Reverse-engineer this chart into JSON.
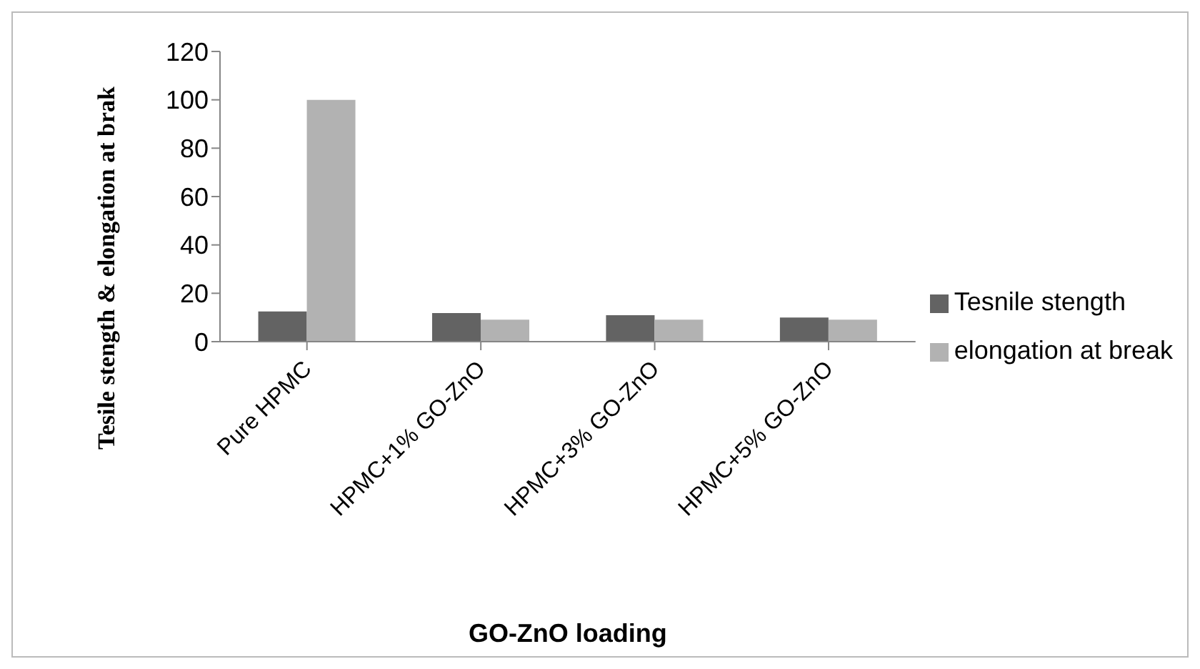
{
  "chart_data": {
    "type": "bar",
    "xlabel": "GO-ZnO loading",
    "ylabel": "Tesile stength & elongation at brak",
    "categories": [
      "Pure HPMC",
      "HPMC+1% GO-ZnO",
      "HPMC+3% GO-ZnO",
      "HPMC+5% GO-ZnO"
    ],
    "series": [
      {
        "name": "Tesnile stength",
        "color": "#636363",
        "values": [
          12.5,
          11.8,
          10.9,
          10
        ]
      },
      {
        "name": "elongation at break",
        "color": "#b2b2b2",
        "values": [
          100,
          9.1,
          9.1,
          9.1
        ]
      }
    ],
    "ylim": [
      0,
      120
    ],
    "yticks": [
      0,
      20,
      40,
      60,
      80,
      100,
      120
    ],
    "grid": false,
    "legend": "right"
  }
}
